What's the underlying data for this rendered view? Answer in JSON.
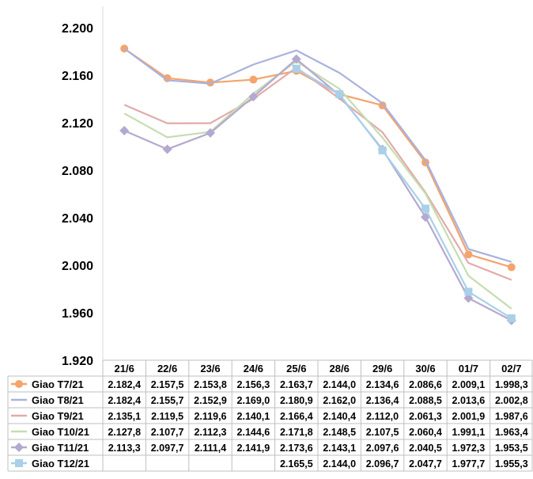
{
  "chart_data": {
    "type": "line",
    "title": "",
    "xlabel": "",
    "ylabel": "",
    "categories": [
      "21/6",
      "22/6",
      "23/6",
      "24/6",
      "25/6",
      "28/6",
      "29/6",
      "30/6",
      "01/7",
      "02/7"
    ],
    "ylim": [
      1920,
      2200
    ],
    "y_ticks": [
      "1.920",
      "1.960",
      "2.000",
      "2.040",
      "2.080",
      "2.120",
      "2.160",
      "2.200"
    ],
    "y_tick_values": [
      1920,
      1960,
      2000,
      2040,
      2080,
      2120,
      2160,
      2200
    ],
    "grid": false,
    "legend_placement": "data-table-below",
    "series": [
      {
        "name": "Giao T7/21",
        "color": "#f4a46c",
        "marker": "circle",
        "values": [
          2182.4,
          2157.5,
          2153.8,
          2156.3,
          2163.7,
          2144.0,
          2134.6,
          2086.6,
          2009.1,
          1998.3
        ],
        "labels": [
          "2.182,4",
          "2.157,5",
          "2.153,8",
          "2.156,3",
          "2.163,7",
          "2.144,0",
          "2.134,6",
          "2.086,6",
          "2.009,1",
          "1.998,3"
        ]
      },
      {
        "name": "Giao T8/21",
        "color": "#aab2dd",
        "marker": "none",
        "values": [
          2182.4,
          2155.7,
          2152.9,
          2169.0,
          2180.9,
          2162.0,
          2136.4,
          2088.5,
          2013.6,
          2002.8
        ],
        "labels": [
          "2.182,4",
          "2.155,7",
          "2.152,9",
          "2.169,0",
          "2.180,9",
          "2.162,0",
          "2.136,4",
          "2.088,5",
          "2.013,6",
          "2.002,8"
        ]
      },
      {
        "name": "Giao T9/21",
        "color": "#e2aaaa",
        "marker": "none",
        "values": [
          2135.1,
          2119.5,
          2119.6,
          2140.1,
          2166.4,
          2140.4,
          2112.0,
          2061.3,
          2001.9,
          1987.6
        ],
        "labels": [
          "2.135,1",
          "2.119,5",
          "2.119,6",
          "2.140,1",
          "2.166,4",
          "2.140,4",
          "2.112,0",
          "2.061,3",
          "2.001,9",
          "1.987,6"
        ]
      },
      {
        "name": "Giao T10/21",
        "color": "#c6dcb0",
        "marker": "none",
        "values": [
          2127.8,
          2107.7,
          2112.3,
          2144.6,
          2171.8,
          2148.5,
          2107.5,
          2060.4,
          1991.1,
          1963.4
        ],
        "labels": [
          "2.127,8",
          "2.107,7",
          "2.112,3",
          "2.144,6",
          "2.171,8",
          "2.148,5",
          "2.107,5",
          "2.060,4",
          "1.991,1",
          "1.963,4"
        ]
      },
      {
        "name": "Giao T11/21",
        "color": "#b4a9cf",
        "marker": "diamond",
        "values": [
          2113.3,
          2097.7,
          2111.4,
          2141.9,
          2173.6,
          2143.1,
          2097.6,
          2040.5,
          1972.3,
          1953.5
        ],
        "labels": [
          "2.113,3",
          "2.097,7",
          "2.111,4",
          "2.141,9",
          "2.173,6",
          "2.143,1",
          "2.097,6",
          "2.040,5",
          "1.972,3",
          "1.953,5"
        ]
      },
      {
        "name": "Giao T12/21",
        "color": "#a9d0e8",
        "marker": "square",
        "values": [
          null,
          null,
          null,
          null,
          2165.5,
          2144.0,
          2096.7,
          2047.7,
          1977.7,
          1955.3
        ],
        "labels": [
          "",
          "",
          "",
          "",
          "2.165,5",
          "2.144,0",
          "2.096,7",
          "2.047,7",
          "1.977,7",
          "1.955,3"
        ]
      }
    ]
  }
}
